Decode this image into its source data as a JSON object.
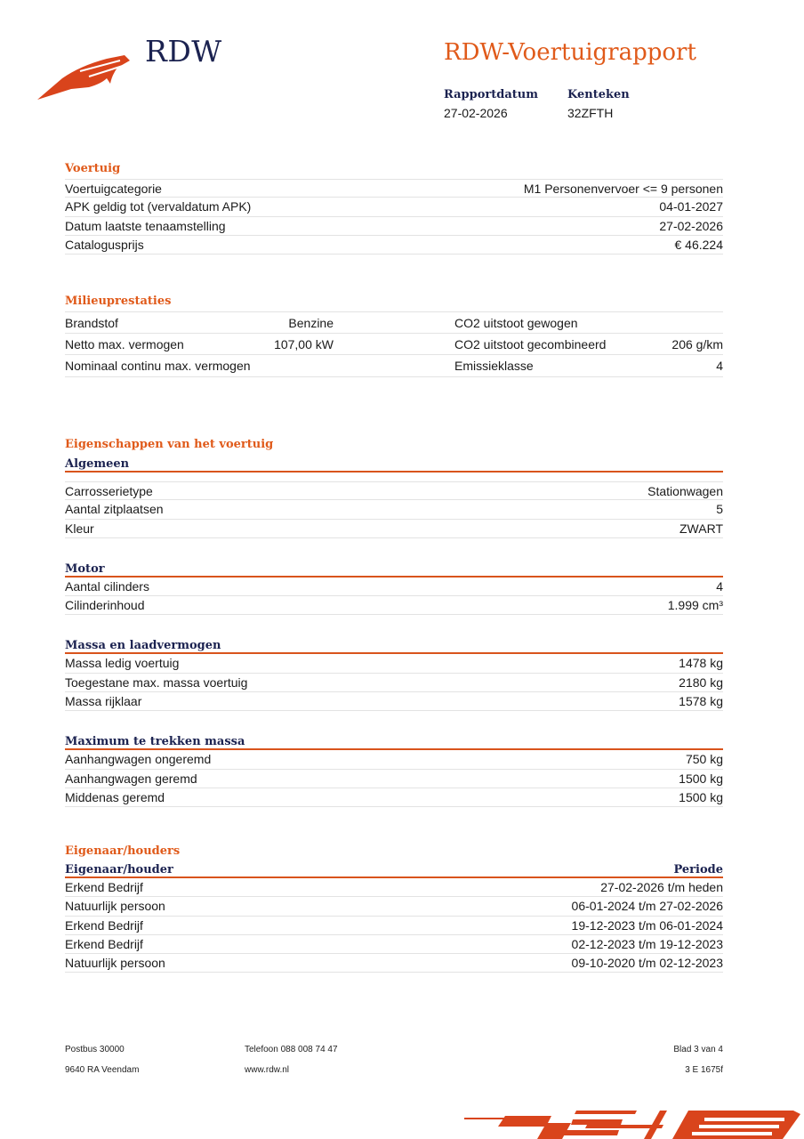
{
  "header": {
    "logo_text": "RDW",
    "title": "RDW-Voertuigrapport",
    "meta": [
      {
        "label": "Rapportdatum",
        "value": "27-02-2026"
      },
      {
        "label": "Kenteken",
        "value": "32ZFTH"
      }
    ]
  },
  "voertuig": {
    "title": "Voertuig",
    "rows": [
      [
        "Voertuigcategorie",
        "M1 Personenvervoer <= 9 personen"
      ],
      [
        "APK geldig tot (vervaldatum APK)",
        "04-01-2027"
      ],
      [
        "Datum laatste tenaamstelling",
        "27-02-2026"
      ],
      [
        "Catalogusprijs",
        "€ 46.224"
      ]
    ]
  },
  "milieu": {
    "title": "Milieuprestaties",
    "rows": [
      [
        "Brandstof",
        "Benzine",
        "CO2 uitstoot gewogen",
        ""
      ],
      [
        "Netto max. vermogen",
        "107,00 kW",
        "CO2 uitstoot gecombineerd",
        "206 g/km"
      ],
      [
        "Nominaal continu max. vermogen",
        "",
        "Emissieklasse",
        "4"
      ]
    ]
  },
  "eigenschappen": {
    "title": "Eigenschappen van het voertuig",
    "groups": [
      {
        "title": "Algemeen",
        "rows": [
          [
            "Carrosserietype",
            "Stationwagen"
          ],
          [
            "Aantal zitplaatsen",
            "5"
          ],
          [
            "Kleur",
            "ZWART"
          ]
        ]
      },
      {
        "title": "Motor",
        "rows": [
          [
            "Aantal cilinders",
            "4"
          ],
          [
            "Cilinderinhoud",
            "1.999 cm³"
          ]
        ]
      },
      {
        "title": "Massa en laadvermogen",
        "rows": [
          [
            "Massa ledig voertuig",
            "1478 kg"
          ],
          [
            "Toegestane max. massa voertuig",
            "2180 kg"
          ],
          [
            "Massa rijklaar",
            "1578 kg"
          ]
        ]
      },
      {
        "title": "Maximum te trekken massa",
        "rows": [
          [
            "Aanhangwagen ongeremd",
            "750 kg"
          ],
          [
            "Aanhangwagen geremd",
            "1500 kg"
          ],
          [
            "Middenas geremd",
            "1500 kg"
          ]
        ]
      }
    ]
  },
  "eigenaar": {
    "title": "Eigenaar/houders",
    "col1": "Eigenaar/houder",
    "col2": "Periode",
    "rows": [
      [
        "Erkend Bedrijf",
        "27-02-2026 t/m heden"
      ],
      [
        "Natuurlijk persoon",
        "06-01-2024 t/m 27-02-2026"
      ],
      [
        "Erkend Bedrijf",
        "19-12-2023 t/m 06-01-2024"
      ],
      [
        "Erkend Bedrijf",
        "02-12-2023 t/m 19-12-2023"
      ],
      [
        "Natuurlijk persoon",
        "09-10-2020 t/m 02-12-2023"
      ]
    ]
  },
  "footer": {
    "address1": "Postbus 30000",
    "address2": "9640 RA Veendam",
    "phone": "Telefoon 088 008 74 47",
    "website": "www.rdw.nl",
    "page": "Blad 3 van 4",
    "code": "3 E 1675f"
  },
  "colors": {
    "accent": "#e05a1a",
    "navy": "#1b2250"
  }
}
